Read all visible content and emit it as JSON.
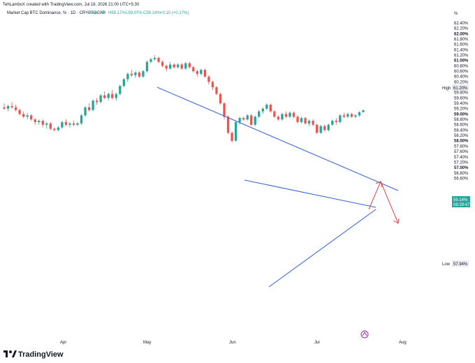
{
  "header": {
    "created_line": "TehLamboX created with TradingView.com, Jul 18, 2026 21:00 UTC+5:30",
    "symbol_line": "Market Cap BTC Dominance, % · 1D · CRYPTOCAP",
    "ohlc": [
      "O59.07%",
      "H59.17%",
      "L59.07%",
      "C59.14%",
      "+0.10 (+0.17%)"
    ]
  },
  "price_axis": {
    "unit_label": "%",
    "ticks": [
      "62.40%",
      "62.20%",
      "62.00%",
      "61.80%",
      "61.60%",
      "61.40%",
      "61.20%",
      "61.00%",
      "60.80%",
      "60.60%",
      "60.40%",
      "60.20%",
      "60.00%",
      "59.80%",
      "59.60%",
      "59.40%",
      "59.20%",
      "59.00%",
      "58.80%",
      "58.60%",
      "58.40%",
      "58.20%",
      "58.00%",
      "57.80%",
      "57.60%",
      "57.40%",
      "57.20%",
      "57.00%",
      "56.80%",
      "56.60%"
    ],
    "bold_ticks": [
      "62.00%",
      "61.00%",
      "60.00%",
      "59.00%",
      "58.00%",
      "57.00%"
    ],
    "high_label": "High",
    "high_value": "61.20%",
    "low_label": "Low",
    "low_value": "57.94%",
    "last_value": "59.14%",
    "countdown": "08:29:47"
  },
  "time_axis": {
    "labels": [
      "Apr",
      "May",
      "Jun",
      "Jul",
      "Aug"
    ]
  },
  "branding": {
    "logo_text": "TradingView"
  },
  "colors": {
    "up": "#26a69a",
    "down": "#ef5350",
    "trendline": "#2f5fd8",
    "arrow": "#e8444a"
  },
  "chart_data": {
    "type": "candlestick",
    "title": "Market Cap BTC Dominance, %",
    "interval": "1D",
    "ylim": [
      56.56,
      62.5
    ],
    "x_labels": [
      "Apr",
      "May",
      "Jun",
      "Jul",
      "Aug"
    ],
    "candles": [
      [
        59.25,
        59.4,
        59.15,
        59.2
      ],
      [
        59.2,
        59.35,
        59.1,
        59.3
      ],
      [
        59.3,
        59.45,
        59.2,
        59.25
      ],
      [
        59.25,
        59.35,
        59.1,
        59.15
      ],
      [
        59.15,
        59.2,
        58.95,
        59.0
      ],
      [
        59.0,
        59.1,
        58.85,
        58.9
      ],
      [
        58.9,
        59.05,
        58.8,
        58.95
      ],
      [
        58.95,
        59.0,
        58.75,
        58.8
      ],
      [
        58.8,
        58.85,
        58.6,
        58.7
      ],
      [
        58.7,
        58.8,
        58.6,
        58.75
      ],
      [
        58.75,
        58.8,
        58.5,
        58.6
      ],
      [
        58.6,
        58.7,
        58.45,
        58.65
      ],
      [
        58.65,
        58.7,
        58.4,
        58.45
      ],
      [
        58.45,
        58.5,
        58.35,
        58.4
      ],
      [
        58.4,
        58.55,
        58.35,
        58.5
      ],
      [
        58.5,
        58.75,
        58.45,
        58.7
      ],
      [
        58.7,
        58.8,
        58.55,
        58.6
      ],
      [
        58.6,
        58.7,
        58.5,
        58.65
      ],
      [
        58.65,
        58.75,
        58.55,
        58.6
      ],
      [
        58.6,
        58.7,
        58.55,
        58.65
      ],
      [
        58.65,
        59.0,
        58.6,
        58.95
      ],
      [
        58.95,
        59.3,
        58.9,
        59.25
      ],
      [
        59.25,
        59.4,
        59.1,
        59.15
      ],
      [
        59.15,
        59.55,
        59.1,
        59.5
      ],
      [
        59.5,
        59.6,
        59.35,
        59.45
      ],
      [
        59.45,
        59.75,
        59.4,
        59.7
      ],
      [
        59.7,
        59.85,
        59.55,
        59.6
      ],
      [
        59.6,
        59.8,
        59.5,
        59.75
      ],
      [
        59.75,
        59.9,
        59.55,
        59.6
      ],
      [
        59.6,
        59.8,
        59.5,
        59.75
      ],
      [
        59.75,
        60.1,
        59.7,
        60.05
      ],
      [
        60.05,
        60.35,
        60.0,
        60.3
      ],
      [
        60.3,
        60.55,
        60.2,
        60.5
      ],
      [
        60.5,
        60.65,
        60.4,
        60.45
      ],
      [
        60.45,
        60.6,
        60.35,
        60.55
      ],
      [
        60.55,
        60.6,
        60.35,
        60.4
      ],
      [
        60.4,
        60.65,
        60.35,
        60.6
      ],
      [
        60.6,
        61.0,
        60.55,
        60.95
      ],
      [
        60.95,
        61.1,
        60.9,
        61.05
      ],
      [
        61.05,
        61.2,
        61.0,
        61.1
      ],
      [
        61.1,
        61.15,
        60.9,
        60.95
      ],
      [
        60.95,
        61.0,
        60.75,
        60.8
      ],
      [
        60.8,
        60.85,
        60.6,
        60.7
      ],
      [
        60.7,
        60.95,
        60.65,
        60.85
      ],
      [
        60.85,
        60.9,
        60.7,
        60.75
      ],
      [
        60.75,
        60.9,
        60.7,
        60.85
      ],
      [
        60.85,
        60.9,
        60.65,
        60.7
      ],
      [
        60.7,
        60.95,
        60.65,
        60.9
      ],
      [
        60.9,
        60.95,
        60.7,
        60.75
      ],
      [
        60.75,
        60.8,
        60.55,
        60.6
      ],
      [
        60.6,
        60.65,
        60.4,
        60.5
      ],
      [
        60.5,
        60.7,
        60.45,
        60.65
      ],
      [
        60.65,
        60.7,
        60.35,
        60.4
      ],
      [
        60.4,
        60.45,
        60.1,
        60.2
      ],
      [
        60.2,
        60.25,
        59.9,
        60.0
      ],
      [
        60.0,
        60.05,
        59.7,
        59.75
      ],
      [
        59.75,
        59.8,
        59.35,
        59.4
      ],
      [
        59.4,
        59.45,
        58.8,
        58.9
      ],
      [
        58.9,
        58.95,
        58.25,
        58.3
      ],
      [
        58.3,
        58.35,
        57.94,
        58.0
      ],
      [
        58.0,
        58.75,
        57.98,
        58.7
      ],
      [
        58.7,
        58.9,
        58.6,
        58.85
      ],
      [
        58.85,
        58.9,
        58.75,
        58.8
      ],
      [
        58.8,
        59.0,
        58.75,
        58.95
      ],
      [
        58.95,
        59.0,
        58.55,
        58.6
      ],
      [
        58.6,
        58.95,
        58.55,
        58.9
      ],
      [
        58.9,
        59.15,
        58.85,
        59.1
      ],
      [
        59.1,
        59.25,
        59.0,
        59.2
      ],
      [
        59.2,
        59.4,
        59.15,
        59.35
      ],
      [
        59.35,
        59.4,
        59.05,
        59.1
      ],
      [
        59.1,
        59.15,
        58.85,
        58.9
      ],
      [
        58.9,
        58.95,
        58.75,
        58.8
      ],
      [
        58.8,
        59.05,
        58.75,
        59.0
      ],
      [
        59.0,
        59.1,
        58.85,
        58.9
      ],
      [
        58.9,
        59.1,
        58.85,
        59.05
      ],
      [
        59.05,
        59.1,
        58.85,
        58.9
      ],
      [
        58.9,
        58.95,
        58.65,
        58.7
      ],
      [
        58.7,
        58.9,
        58.65,
        58.85
      ],
      [
        58.85,
        58.9,
        58.6,
        58.65
      ],
      [
        58.65,
        58.8,
        58.55,
        58.75
      ],
      [
        58.75,
        58.8,
        58.55,
        58.6
      ],
      [
        58.6,
        58.65,
        58.25,
        58.3
      ],
      [
        58.3,
        58.6,
        58.25,
        58.55
      ],
      [
        58.55,
        58.6,
        58.35,
        58.4
      ],
      [
        58.4,
        58.65,
        58.35,
        58.6
      ],
      [
        58.6,
        58.8,
        58.55,
        58.75
      ],
      [
        58.75,
        58.85,
        58.6,
        58.7
      ],
      [
        58.7,
        59.0,
        58.65,
        58.95
      ],
      [
        58.95,
        59.05,
        58.85,
        58.9
      ],
      [
        58.9,
        59.05,
        58.85,
        59.0
      ],
      [
        59.0,
        59.05,
        58.85,
        58.9
      ],
      [
        58.9,
        59.0,
        58.85,
        58.95
      ],
      [
        58.95,
        59.1,
        58.9,
        59.07
      ],
      [
        59.07,
        59.17,
        59.07,
        59.14
      ]
    ]
  }
}
